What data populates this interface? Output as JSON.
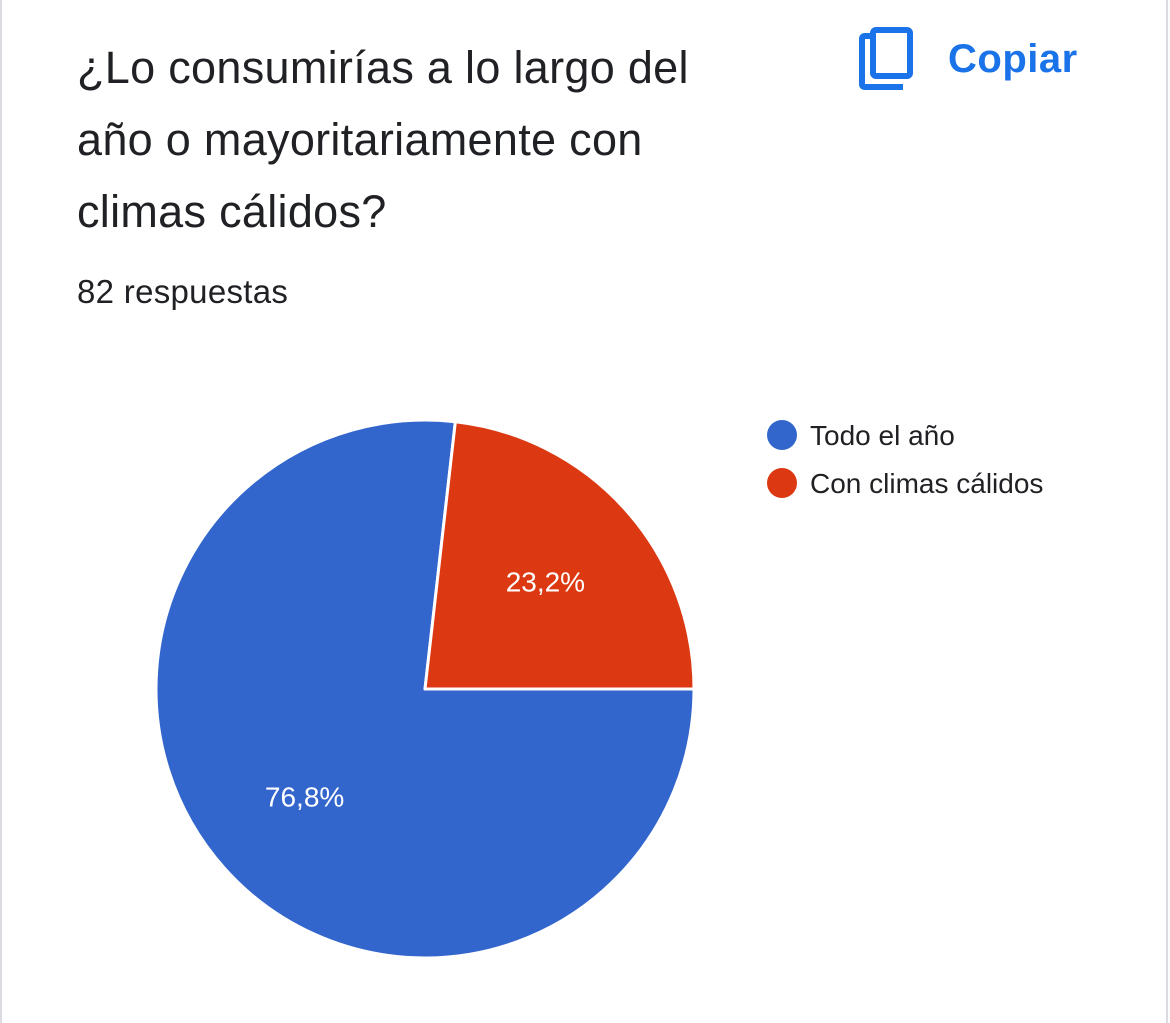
{
  "question": {
    "title": "¿Lo consumirías a lo largo del año o mayoritariamente con climas cálidos?",
    "responses_text": "82 respuestas"
  },
  "copy_button": {
    "label": "Copiar",
    "icon": "copy-icon"
  },
  "colors": {
    "accent": "#1a73e8",
    "slice_1": "#3366cc",
    "slice_2": "#dc3912",
    "text": "#202124"
  },
  "chart_data": {
    "type": "pie",
    "title": "",
    "categories": [
      "Todo el año",
      "Con climas cálidos"
    ],
    "values": [
      76.8,
      23.2
    ],
    "value_labels": [
      "76,8%",
      "23,2%"
    ],
    "colors": [
      "#3366cc",
      "#dc3912"
    ],
    "legend_position": "right"
  }
}
